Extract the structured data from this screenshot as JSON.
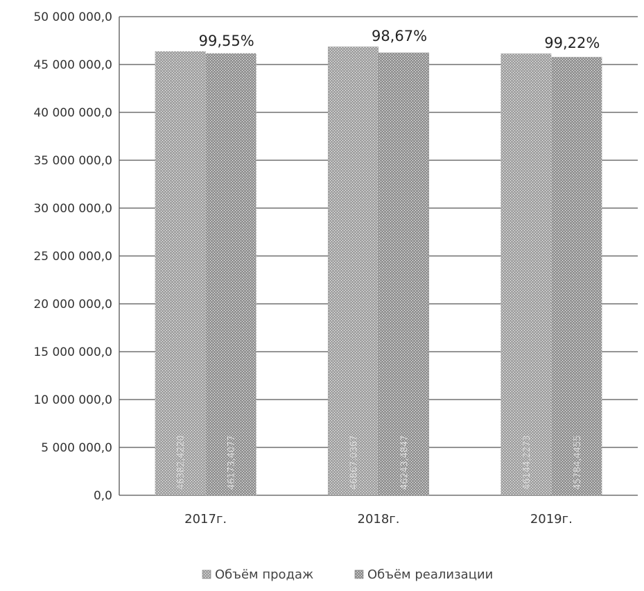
{
  "chart_data": {
    "type": "bar",
    "categories": [
      "2017г.",
      "2018г.",
      "2019г."
    ],
    "series": [
      {
        "name": "Объём продаж",
        "values": [
          46382,
          46867,
          46144
        ]
      },
      {
        "name": "Объём реализации",
        "values": [
          46173,
          46243,
          45784
        ]
      }
    ],
    "series_value_labels": [
      [
        "46382,4220",
        "46867,0367",
        "46144,2273"
      ],
      [
        "46173,4077",
        "46243,4847",
        "45784,4455"
      ]
    ],
    "percent_labels": [
      "99,55%",
      "98,67%",
      "99,22%"
    ],
    "y_tick_labels": [
      "0,0",
      "5 000 000,0",
      "10 000 000,0",
      "15 000 000,0",
      "20 000 000,0",
      "25 000 000,0",
      "30 000 000,0",
      "35 000 000,0",
      "40 000 000,0",
      "45 000 000,0",
      "50 000 000,0"
    ],
    "ylim": [
      0,
      50000000
    ],
    "value_scale": 1000,
    "grid": true,
    "legend_position": "bottom",
    "colors": {
      "sales": "#9a9a9a",
      "realization": "#8c8c8c",
      "grid": "#555555"
    }
  }
}
